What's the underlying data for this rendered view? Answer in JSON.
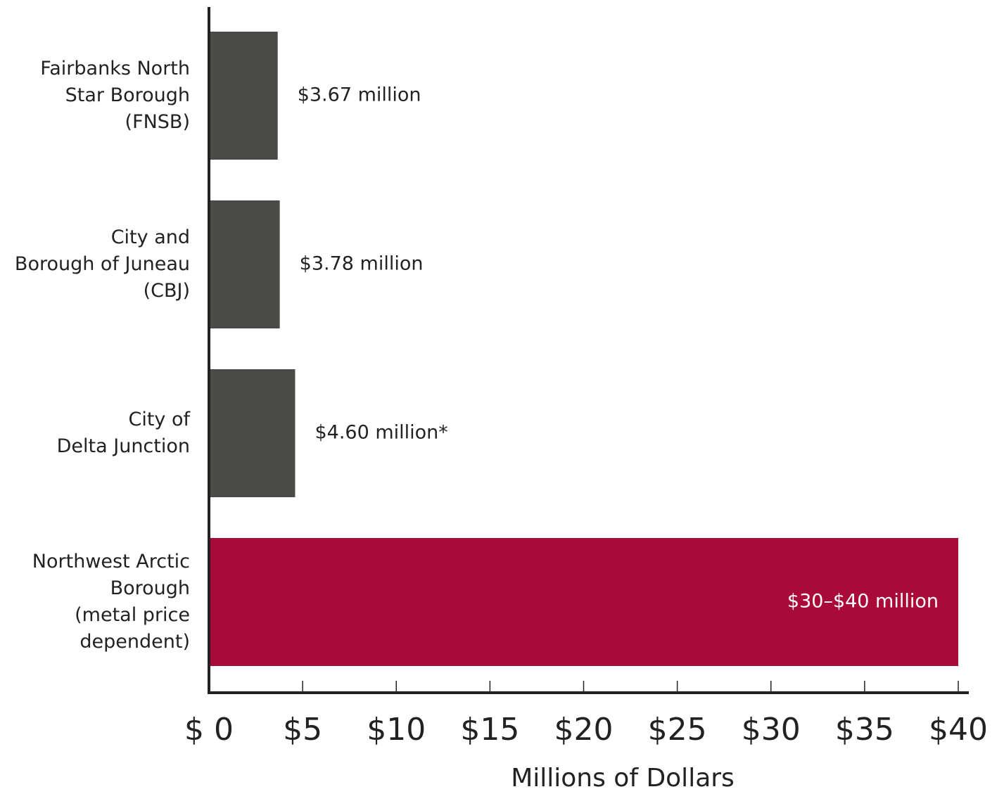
{
  "chart_data": {
    "type": "hbar",
    "categories": [
      "Fairbanks North\nStar Borough\n(FNSB)",
      "City and\nBorough of Juneau\n(CBJ)",
      "City of\nDelta Junction",
      "Northwest Arctic\nBorough\n(metal price\ndependent)"
    ],
    "values": [
      3.67,
      3.78,
      4.6,
      40
    ],
    "value_labels": [
      "$3.67 million",
      "$3.78 million",
      "$4.60 million*",
      "$30–$40  million"
    ],
    "colors": [
      "#4a4b47",
      "#4a4b47",
      "#4a4b47",
      "#a90a38"
    ],
    "xlim": [
      0,
      40
    ],
    "xticks": [
      {
        "value": 0,
        "label": "$ 0"
      },
      {
        "value": 5,
        "label": "$5"
      },
      {
        "value": 10,
        "label": "$10"
      },
      {
        "value": 15,
        "label": "$15"
      },
      {
        "value": 20,
        "label": "$20"
      },
      {
        "value": 25,
        "label": "$25"
      },
      {
        "value": 30,
        "label": "$30"
      },
      {
        "value": 35,
        "label": "$35"
      },
      {
        "value": 40,
        "label": "$40"
      }
    ],
    "xlabel": "Millions of Dollars"
  }
}
